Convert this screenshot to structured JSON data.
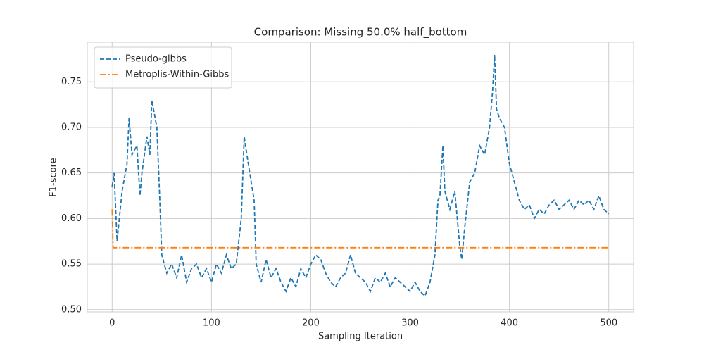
{
  "chart_data": {
    "type": "line",
    "title": "Comparison: Missing 50.0% half_bottom",
    "x_label": "Sampling Iteration",
    "y_label": "F1-score",
    "xlim": [
      -25,
      525
    ],
    "ylim": [
      0.4975,
      0.7935
    ],
    "xticks": [
      0,
      100,
      200,
      300,
      400,
      500
    ],
    "yticks": [
      {
        "value": 0.5,
        "label": "0.50"
      },
      0.55,
      {
        "value": 0.6,
        "label": "0.60"
      },
      0.65,
      {
        "value": 0.7,
        "label": "0.70"
      },
      0.75
    ],
    "grid": true,
    "legend": "upper left",
    "series": [
      {
        "name": "Pseudo-gibbs",
        "color": "#1f77b4",
        "linestyle": "dashed",
        "x": [
          0,
          2,
          5,
          10,
          15,
          17,
          20,
          25,
          28,
          30,
          35,
          38,
          40,
          45,
          48,
          50,
          55,
          60,
          65,
          70,
          75,
          80,
          85,
          90,
          95,
          100,
          105,
          110,
          115,
          120,
          125,
          130,
          133,
          135,
          140,
          143,
          145,
          150,
          155,
          160,
          165,
          170,
          175,
          180,
          185,
          190,
          195,
          200,
          205,
          210,
          215,
          220,
          225,
          230,
          235,
          240,
          245,
          250,
          255,
          260,
          265,
          270,
          275,
          280,
          285,
          290,
          295,
          300,
          305,
          310,
          315,
          320,
          325,
          328,
          330,
          333,
          335,
          340,
          345,
          350,
          352,
          355,
          360,
          365,
          370,
          375,
          380,
          383,
          385,
          387,
          390,
          395,
          400,
          405,
          410,
          415,
          420,
          425,
          430,
          435,
          440,
          445,
          450,
          455,
          460,
          465,
          470,
          475,
          480,
          485,
          490,
          495,
          500
        ],
        "values": [
          0.635,
          0.65,
          0.575,
          0.63,
          0.66,
          0.71,
          0.67,
          0.68,
          0.625,
          0.65,
          0.69,
          0.67,
          0.73,
          0.7,
          0.62,
          0.56,
          0.54,
          0.55,
          0.535,
          0.56,
          0.53,
          0.545,
          0.55,
          0.535,
          0.545,
          0.53,
          0.55,
          0.54,
          0.56,
          0.545,
          0.55,
          0.6,
          0.69,
          0.675,
          0.64,
          0.62,
          0.55,
          0.53,
          0.555,
          0.535,
          0.545,
          0.53,
          0.52,
          0.535,
          0.525,
          0.545,
          0.535,
          0.55,
          0.56,
          0.555,
          0.54,
          0.53,
          0.525,
          0.535,
          0.54,
          0.56,
          0.54,
          0.535,
          0.53,
          0.52,
          0.535,
          0.53,
          0.54,
          0.525,
          0.535,
          0.53,
          0.525,
          0.52,
          0.53,
          0.52,
          0.515,
          0.53,
          0.56,
          0.62,
          0.625,
          0.68,
          0.63,
          0.61,
          0.63,
          0.57,
          0.555,
          0.59,
          0.64,
          0.65,
          0.68,
          0.67,
          0.7,
          0.74,
          0.78,
          0.72,
          0.71,
          0.7,
          0.66,
          0.64,
          0.62,
          0.61,
          0.615,
          0.6,
          0.61,
          0.605,
          0.615,
          0.62,
          0.61,
          0.615,
          0.62,
          0.61,
          0.62,
          0.615,
          0.62,
          0.61,
          0.625,
          0.61,
          0.605
        ]
      },
      {
        "name": "Metroplis-Within-Gibbs",
        "color": "#ff7f0e",
        "linestyle": "dashdot",
        "x": [
          0,
          1,
          500
        ],
        "values": [
          0.61,
          0.568,
          0.568
        ]
      }
    ]
  }
}
